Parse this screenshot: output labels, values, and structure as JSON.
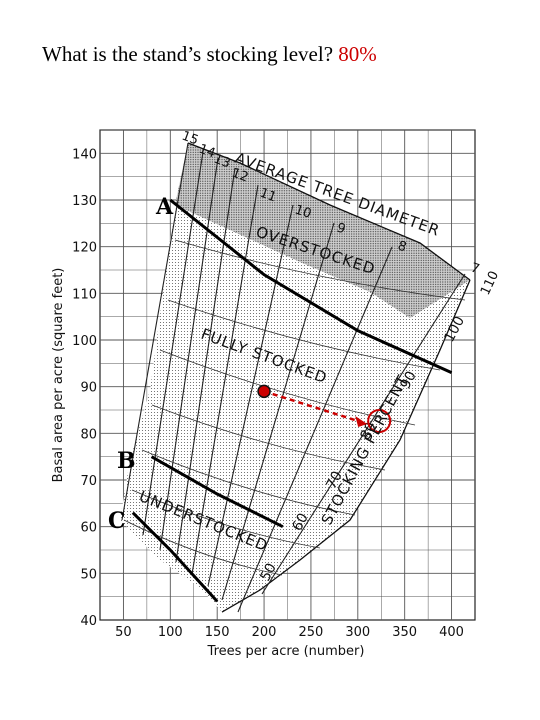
{
  "question": {
    "text": "What is the stand’s stocking level?",
    "answer": "80%"
  },
  "chart_data": {
    "type": "line",
    "xlabel": "Trees per acre (number)",
    "ylabel": "Basal area per acre (square feet)",
    "xlim": [
      25,
      425
    ],
    "ylim": [
      40,
      145
    ],
    "x_ticks": [
      "50",
      "100",
      "150",
      "200",
      "250",
      "300",
      "350",
      "400"
    ],
    "y_ticks": [
      "40",
      "50",
      "60",
      "70",
      "80",
      "90",
      "100",
      "110",
      "120",
      "130",
      "140"
    ],
    "zone_labels": {
      "overstocked": "OVERSTOCKED",
      "fully": "FULLY STOCKED",
      "understocked": "UNDERSTOCKED"
    },
    "diameter_title": "AVERAGE TREE DIAMETER",
    "stocking_title": "STOCKING PERCENT",
    "curves": [
      {
        "label": "A",
        "points": [
          [
            100,
            130
          ],
          [
            200,
            114
          ],
          [
            300,
            102
          ],
          [
            400,
            93
          ]
        ]
      },
      {
        "label": "B",
        "points": [
          [
            80,
            75
          ],
          [
            150,
            67
          ],
          [
            220,
            60
          ]
        ]
      },
      {
        "label": "C",
        "points": [
          [
            60,
            63
          ],
          [
            100,
            55
          ],
          [
            150,
            44
          ]
        ]
      }
    ],
    "diameter_labels": [
      "15",
      "14",
      "13",
      "12",
      "11",
      "10",
      "9",
      "8",
      "7"
    ],
    "diameter_110": "110",
    "stocking_labels": [
      "50",
      "60",
      "70",
      "80",
      "90",
      "100"
    ],
    "stand_point": {
      "trees": 200,
      "basal_area": 89
    },
    "stand_result": {
      "trees": 310,
      "basal_area": 82,
      "stocking": "80"
    },
    "colors": {
      "answer": "#cc0000",
      "point": "#cc0000",
      "shade": "#bdbdbd"
    }
  }
}
